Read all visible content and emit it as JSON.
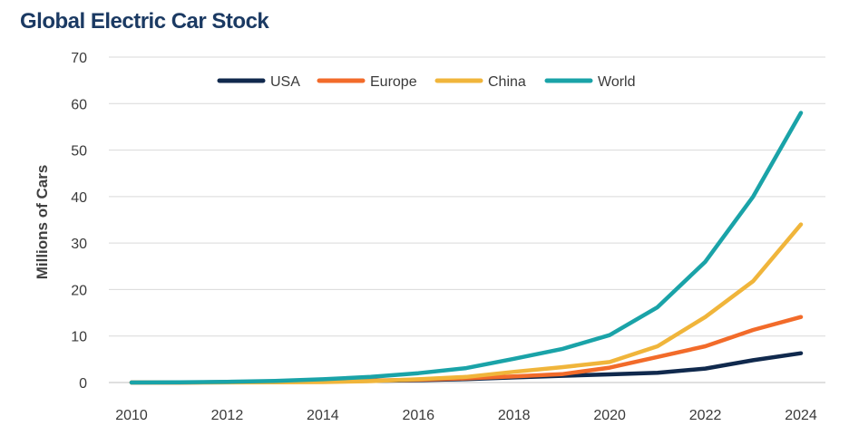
{
  "chart_data": {
    "type": "line",
    "title": "Global Electric Car Stock",
    "xlabel": "",
    "ylabel": "Millions of Cars",
    "x": [
      2010,
      2011,
      2012,
      2013,
      2014,
      2015,
      2016,
      2017,
      2018,
      2019,
      2020,
      2021,
      2022,
      2023,
      2024
    ],
    "xticks": [
      2010,
      2012,
      2014,
      2016,
      2018,
      2020,
      2022,
      2024
    ],
    "yticks": [
      0,
      10,
      20,
      30,
      40,
      50,
      60,
      70
    ],
    "ylim": [
      0,
      70
    ],
    "xlim": [
      2010,
      2024
    ],
    "grid": "horizontal",
    "legend_position": "top",
    "series": [
      {
        "name": "USA",
        "color": "#10294d",
        "values": [
          0,
          0,
          0.1,
          0.15,
          0.25,
          0.35,
          0.5,
          0.75,
          1.1,
          1.45,
          1.75,
          2.1,
          3.0,
          4.8,
          6.3
        ]
      },
      {
        "name": "Europe",
        "color": "#f26b2a",
        "values": [
          0,
          0,
          0.05,
          0.1,
          0.2,
          0.4,
          0.6,
          0.9,
          1.3,
          1.8,
          3.2,
          5.5,
          7.8,
          11.3,
          14.1
        ]
      },
      {
        "name": "China",
        "color": "#f0b53b",
        "values": [
          0,
          0,
          0.02,
          0.05,
          0.1,
          0.3,
          0.7,
          1.2,
          2.3,
          3.3,
          4.4,
          7.8,
          14.1,
          21.8,
          34.0
        ]
      },
      {
        "name": "World",
        "color": "#1aa3a8",
        "values": [
          0,
          0.05,
          0.15,
          0.35,
          0.7,
          1.2,
          2.0,
          3.1,
          5.1,
          7.2,
          10.2,
          16.2,
          26.0,
          40.0,
          58.0
        ]
      }
    ]
  }
}
